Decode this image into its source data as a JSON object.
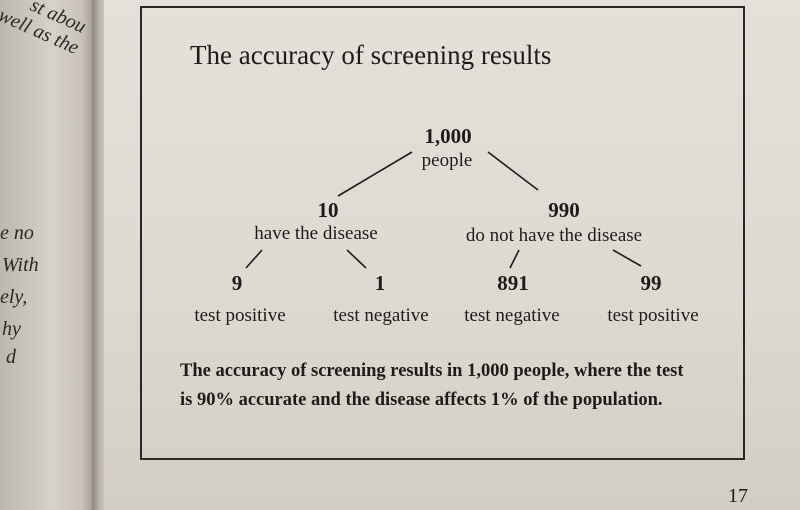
{
  "left_page": {
    "fragments": [
      "st abou",
      "well as the",
      "e no",
      "With",
      "ely,",
      "hy",
      "d"
    ]
  },
  "diagram": {
    "title": "The accuracy of screening results",
    "root": {
      "value": "1,000",
      "label": "people"
    },
    "branches": [
      {
        "value": "10",
        "label": "have the disease"
      },
      {
        "value": "990",
        "label": "do not have the disease"
      }
    ],
    "leaves": [
      {
        "value": "9",
        "label": "test positive"
      },
      {
        "value": "1",
        "label": "test negative"
      },
      {
        "value": "891",
        "label": "test negative"
      },
      {
        "value": "99",
        "label": "test positive"
      }
    ],
    "caption_line1": "The accuracy of screening results in 1,000 people, where the test",
    "caption_line2": "is 90% accurate and the disease affects 1% of the population."
  },
  "page_number": "17"
}
